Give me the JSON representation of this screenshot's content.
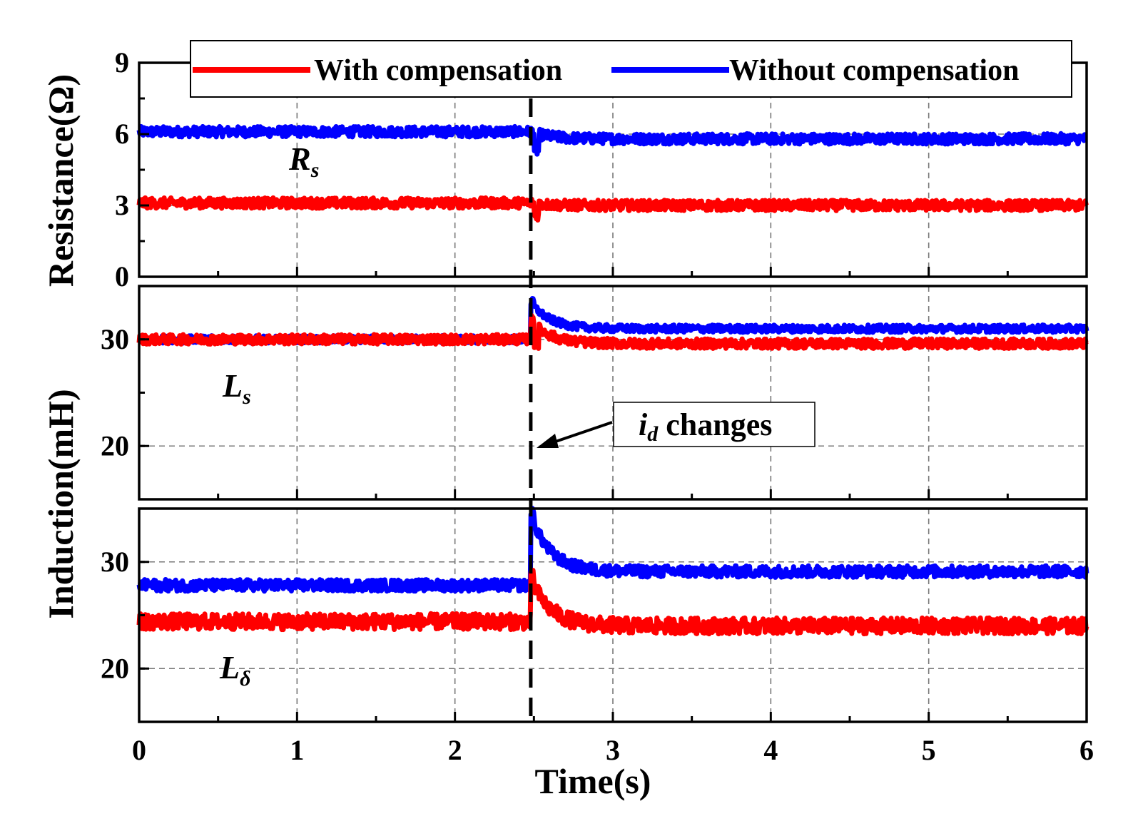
{
  "chart_data": {
    "type": "line",
    "xlabel": "Time(s)",
    "xlim": [
      0,
      6
    ],
    "xticks": [
      "0",
      "1",
      "2",
      "3",
      "4",
      "5",
      "6"
    ],
    "event_time": 2.48,
    "legend": {
      "position": "top",
      "entries": [
        {
          "name": "With compensation",
          "color": "#ff0000"
        },
        {
          "name": "Without compensation",
          "color": "#0000ff"
        }
      ]
    },
    "annotation": {
      "symbol": "i",
      "subscript": "d",
      "text": "changes"
    },
    "panels": [
      {
        "id": "rs",
        "ylabel": "Resistance(Ω)",
        "ylim": [
          0,
          9
        ],
        "yticks": [
          "0",
          "3",
          "6",
          "9"
        ],
        "label": {
          "symbol": "R",
          "subscript": "s"
        },
        "series": [
          {
            "name": "Without compensation",
            "color": "#0000ff",
            "before": 6.1,
            "dip": 5.3,
            "peak": 6.1,
            "after": 5.8,
            "noise": 0.22
          },
          {
            "name": "With compensation",
            "color": "#ff0000",
            "before": 3.1,
            "dip": 2.6,
            "peak": 3.1,
            "after": 3.0,
            "noise": 0.22
          }
        ]
      },
      {
        "id": "ls",
        "ylabel": "",
        "ylim": [
          15,
          35
        ],
        "yticks": [
          "20",
          "30"
        ],
        "label": {
          "symbol": "L",
          "subscript": "s"
        },
        "series": [
          {
            "name": "Without compensation",
            "color": "#0000ff",
            "before": 30,
            "dip": 30,
            "peak": 33.5,
            "after": 31.0,
            "noise": 0.35
          },
          {
            "name": "With compensation",
            "color": "#ff0000",
            "before": 30,
            "dip": 29.6,
            "peak": 31.8,
            "after": 29.6,
            "noise": 0.45
          }
        ]
      },
      {
        "id": "ld",
        "ylabel": "",
        "ylim": [
          15,
          35
        ],
        "yticks": [
          "20",
          "30"
        ],
        "label": {
          "symbol": "L",
          "subscript": "δ"
        },
        "series": [
          {
            "name": "Without compensation",
            "color": "#0000ff",
            "before": 27.8,
            "dip": 27.8,
            "peak": 34.5,
            "after": 29.1,
            "noise": 0.55
          },
          {
            "name": "With compensation",
            "color": "#ff0000",
            "before": 24.4,
            "dip": 24.4,
            "peak": 28.5,
            "after": 24.0,
            "noise": 0.75
          }
        ]
      }
    ],
    "shared_ylabel": "Induction(mH)"
  }
}
